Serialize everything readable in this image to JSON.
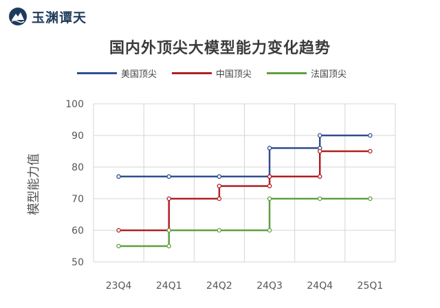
{
  "brand": {
    "name": "玉渊谭天",
    "mark_icon": "mountain-wave-icon",
    "color": "#1f3b5c"
  },
  "chart_data": {
    "type": "line",
    "step": true,
    "title": "国内外顶尖大模型能力变化趋势",
    "xlabel": "",
    "ylabel": "模型能力值",
    "categories": [
      "23Q4",
      "24Q1",
      "24Q2",
      "24Q3",
      "24Q4",
      "25Q1"
    ],
    "ylim": [
      50,
      100
    ],
    "yticks": [
      50,
      60,
      70,
      80,
      90,
      100
    ],
    "grid": true,
    "legend_position": "top",
    "series": [
      {
        "name": "美国顶尖",
        "color": "#2f4d8f",
        "points": [
          [
            0,
            77
          ],
          [
            1,
            77
          ],
          [
            2,
            77
          ],
          [
            3,
            77
          ],
          [
            3,
            86
          ],
          [
            4,
            86
          ],
          [
            4,
            90
          ],
          [
            5,
            90
          ]
        ]
      },
      {
        "name": "中国顶尖",
        "color": "#b01e23",
        "points": [
          [
            0,
            60
          ],
          [
            1,
            60
          ],
          [
            1,
            70
          ],
          [
            2,
            70
          ],
          [
            2,
            74
          ],
          [
            3,
            74
          ],
          [
            3,
            77
          ],
          [
            4,
            77
          ],
          [
            4,
            85
          ],
          [
            5,
            85
          ]
        ]
      },
      {
        "name": "法国顶尖",
        "color": "#5e9e3f",
        "points": [
          [
            0,
            55
          ],
          [
            1,
            55
          ],
          [
            1,
            60
          ],
          [
            2,
            60
          ],
          [
            3,
            60
          ],
          [
            3,
            70
          ],
          [
            4,
            70
          ],
          [
            5,
            70
          ]
        ]
      }
    ]
  }
}
